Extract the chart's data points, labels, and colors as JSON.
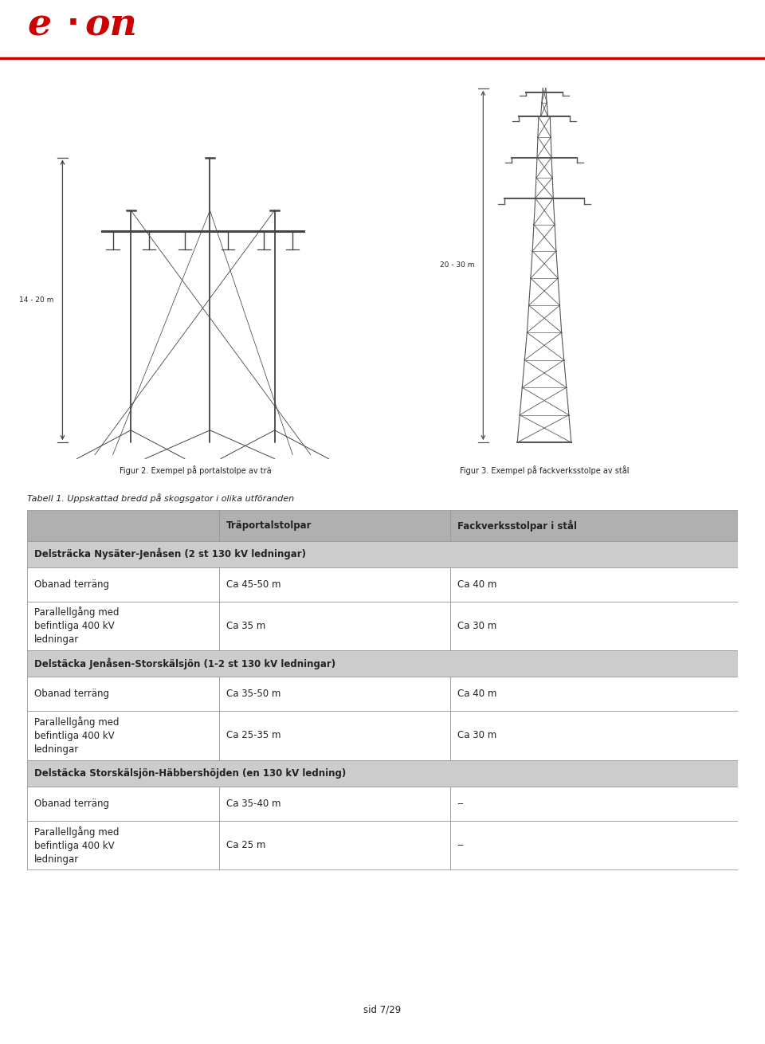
{
  "red_color": "#cc0000",
  "fig2_caption": "Figur 2. Exempel på portalstolpe av trä",
  "fig3_caption": "Figur 3. Exempel på fackverksstolpe av stål",
  "table_title": "Tabell 1. Uppskattad bredd på skogsgator i olika utföranden",
  "col_headers": [
    "Träportalstolpar",
    "Fackverksstolpar i stål"
  ],
  "header_bg": "#b0b0b0",
  "section_bg": "#cccccc",
  "row_bg_white": "#ffffff",
  "sections": [
    {
      "title": "Delsträcka Nysäter-Jenåsen (2 st 130 kV ledningar)",
      "rows": [
        [
          "Obanad terräng",
          "Ca 45-50 m",
          "Ca 40 m"
        ],
        [
          "Parallellgång med\nbefintliga 400 kV\nledningar",
          "Ca 35 m",
          "Ca 30 m"
        ]
      ]
    },
    {
      "title": "Delstäcka Jenåsen-Storskälsjön (1-2 st 130 kV ledningar)",
      "rows": [
        [
          "Obanad terräng",
          "Ca 35-50 m",
          "Ca 40 m"
        ],
        [
          "Parallellgång med\nbefintliga 400 kV\nledningar",
          "Ca 25-35 m",
          "Ca 30 m"
        ]
      ]
    },
    {
      "title": "Delstäcka Storskälsjön-Häbbershöjden (en 130 kV ledning)",
      "rows": [
        [
          "Obanad terräng",
          "Ca 35-40 m",
          "--"
        ],
        [
          "Parallellgång med\nbefintliga 400 kV\nledningar",
          "Ca 25 m",
          "--"
        ]
      ]
    }
  ],
  "dim_label_left": "14 - 20 m",
  "dim_label_right": "20 - 30 m",
  "page_number": "sid 7/29",
  "bg_color": "#ffffff",
  "text_color": "#222222",
  "table_border_color": "#999999"
}
